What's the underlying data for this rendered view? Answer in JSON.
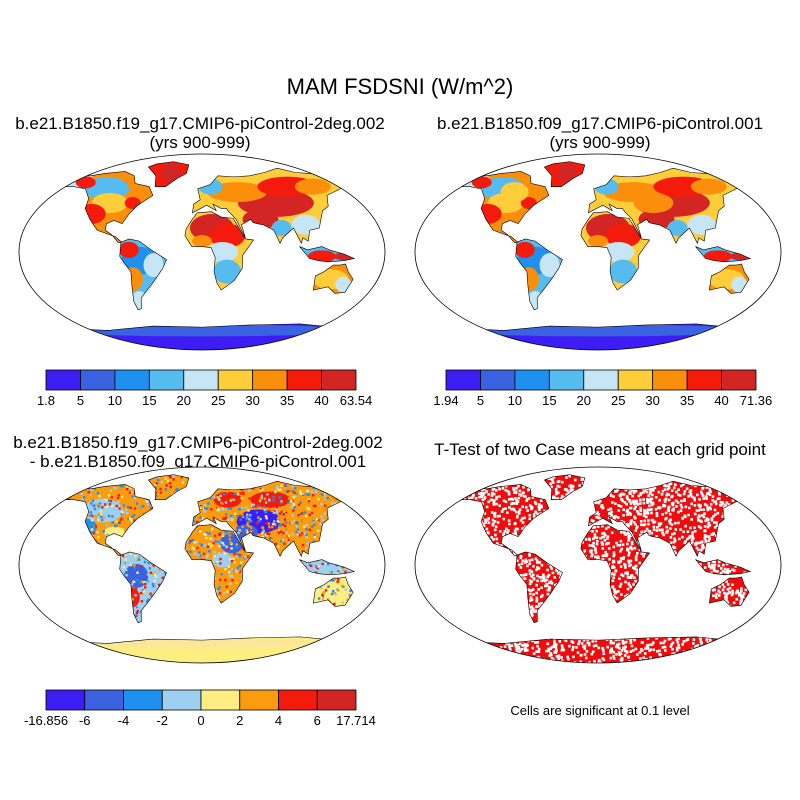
{
  "figure": {
    "title": "MAM FSDSNI (W/m^2)",
    "significance_note": "Cells are significant at 0.1 level"
  },
  "panels": [
    {
      "id": "case1",
      "title_line1": "b.e21.B1850.f19_g17.CMIP6-piControl-2deg.002",
      "title_line2": "(yrs 900-999)",
      "colorbar": {
        "labels": [
          "1.8",
          "5",
          "10",
          "15",
          "20",
          "25",
          "30",
          "35",
          "40",
          "63.54"
        ],
        "colors": [
          "#3c1ef4",
          "#3b62e0",
          "#1e90f0",
          "#56bbee",
          "#c6e6f5",
          "#fece3a",
          "#fb8f0b",
          "#f51b0c",
          "#d42525"
        ]
      }
    },
    {
      "id": "case2",
      "title_line1": "b.e21.B1850.f09_g17.CMIP6-piControl.001",
      "title_line2": "(yrs 900-999)",
      "colorbar": {
        "labels": [
          "1.94",
          "5",
          "10",
          "15",
          "20",
          "25",
          "30",
          "35",
          "40",
          "71.36"
        ],
        "colors": [
          "#3c1ef4",
          "#3b62e0",
          "#1e90f0",
          "#56bbee",
          "#c6e6f5",
          "#fece3a",
          "#fb8f0b",
          "#f51b0c",
          "#d42525"
        ]
      }
    },
    {
      "id": "difference",
      "title_line1": "b.e21.B1850.f19_g17.CMIP6-piControl-2deg.002",
      "title_line2": "- b.e21.B1850.f09_g17.CMIP6-piControl.001",
      "colorbar": {
        "labels": [
          "-16.856",
          "-6",
          "-4",
          "-2",
          "0",
          "2",
          "4",
          "6",
          "17.714"
        ],
        "colors": [
          "#3c1ef4",
          "#3b62e0",
          "#1e90f0",
          "#9dcff0",
          "#fdee82",
          "#fb9b0e",
          "#f51b0c",
          "#d42525"
        ]
      }
    },
    {
      "id": "ttest",
      "title_line1": "T-Test of two Case means at each grid point",
      "significant_color": "#f00c0c"
    }
  ]
}
